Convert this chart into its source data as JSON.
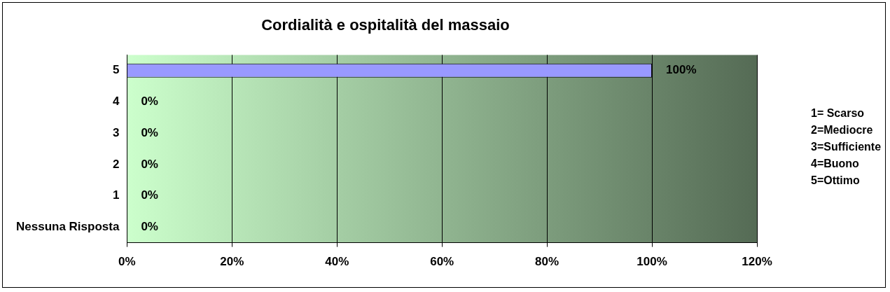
{
  "chart_data": {
    "type": "bar",
    "orientation": "horizontal",
    "title": "Cordialità e ospitalità del massaio",
    "categories": [
      "5",
      "4",
      "3",
      "2",
      "1",
      "Nessuna Risposta"
    ],
    "values": [
      100,
      0,
      0,
      0,
      0,
      0
    ],
    "value_labels": [
      "100%",
      "0%",
      "0%",
      "0%",
      "0%",
      "0%"
    ],
    "color": "#9999ff",
    "xlim": [
      0,
      120
    ],
    "xticks": [
      {
        "value": 0,
        "label": "0%"
      },
      {
        "value": 20,
        "label": "20%"
      },
      {
        "value": 40,
        "label": "40%"
      },
      {
        "value": 60,
        "label": "60%"
      },
      {
        "value": 80,
        "label": "80%"
      },
      {
        "value": 100,
        "label": "100%"
      },
      {
        "value": 120,
        "label": "120%"
      }
    ],
    "grid": "x",
    "annotations": [
      "1= Scarso",
      "2=Mediocre",
      "3=Sufficiente",
      "4=Buono",
      "5=Ottimo"
    ]
  }
}
